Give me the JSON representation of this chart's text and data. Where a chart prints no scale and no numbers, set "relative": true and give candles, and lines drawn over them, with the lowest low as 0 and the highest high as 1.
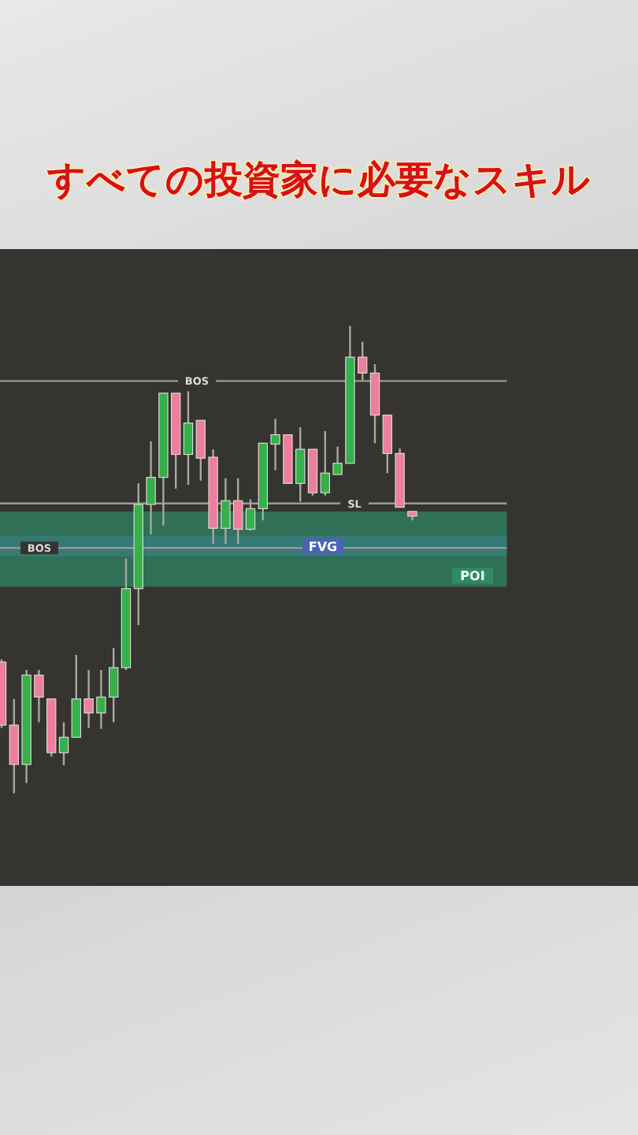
{
  "chart_data": {
    "type": "candlestick",
    "title": "すべての投資家に必要なスキル",
    "relative": true,
    "categories": [
      null,
      null,
      null,
      null,
      null,
      null,
      null,
      null,
      null,
      null,
      null,
      null,
      null,
      null,
      null,
      null,
      null,
      null,
      null,
      null,
      null,
      null,
      null,
      null,
      null,
      null,
      null,
      null,
      null,
      null,
      null,
      null,
      null,
      null
    ],
    "ohlc": [
      [
        0.281,
        0.287,
        0.14,
        0.146
      ],
      [
        0.146,
        0.202,
        0,
        0.062
      ],
      [
        0.062,
        0.264,
        0.022,
        0.253
      ],
      [
        0.253,
        0.264,
        0.152,
        0.206
      ],
      [
        0.202,
        0.202,
        0.079,
        0.087
      ],
      [
        0.087,
        0.152,
        0.06,
        0.12
      ],
      [
        0.12,
        0.296,
        0.12,
        0.202
      ],
      [
        0.202,
        0.264,
        0.14,
        0.172
      ],
      [
        0.172,
        0.264,
        0.138,
        0.206
      ],
      [
        0.206,
        0.311,
        0.152,
        0.269
      ],
      [
        0.269,
        0.502,
        0.264,
        0.438
      ],
      [
        0.438,
        0.663,
        0.36,
        0.618
      ],
      [
        0.618,
        0.753,
        0.554,
        0.676
      ],
      [
        0.676,
        0.856,
        0.573,
        0.856
      ],
      [
        0.856,
        0.856,
        0.652,
        0.725
      ],
      [
        0.725,
        0.86,
        0.66,
        0.792
      ],
      [
        0.798,
        0.798,
        0.669,
        0.717
      ],
      [
        0.719,
        0.736,
        0.534,
        0.567
      ],
      [
        0.567,
        0.674,
        0.534,
        0.626
      ],
      [
        0.626,
        0.674,
        0.534,
        0.565
      ],
      [
        0.565,
        0.629,
        0.562,
        0.609
      ],
      [
        0.609,
        0.749,
        0.584,
        0.749
      ],
      [
        0.747,
        0.801,
        0.691,
        0.767
      ],
      [
        0.767,
        0.767,
        0.663,
        0.663
      ],
      [
        0.663,
        0.783,
        0.624,
        0.736
      ],
      [
        0.736,
        0.736,
        0.637,
        0.643
      ],
      [
        0.643,
        0.775,
        0.637,
        0.685
      ],
      [
        0.682,
        0.742,
        0.682,
        0.706
      ],
      [
        0.706,
        1,
        0.706,
        0.933
      ],
      [
        0.933,
        0.966,
        0.882,
        0.899
      ],
      [
        0.899,
        0.918,
        0.749,
        0.809
      ],
      [
        0.809,
        0.809,
        0.685,
        0.727
      ],
      [
        0.727,
        0.738,
        0.612,
        0.612
      ],
      [
        0.603,
        0.603,
        0.584,
        0.593
      ]
    ],
    "colors": [
      "#ef7d9c",
      "#ef7d9c",
      "#35b04a",
      "#ef7d9c",
      "#ef7d9c",
      "#35b04a",
      "#35b04a",
      "#ef7d9c",
      "#35b04a",
      "#35b04a",
      "#35b04a",
      "#35b04a",
      "#35b04a",
      "#35b04a",
      "#ef7d9c",
      "#35b04a",
      "#ef7d9c",
      "#ef7d9c",
      "#35b04a",
      "#ef7d9c",
      "#35b04a",
      "#35b04a",
      "#35b04a",
      "#ef7d9c",
      "#35b04a",
      "#ef7d9c",
      "#35b04a",
      "#35b04a",
      "#35b04a",
      "#ef7d9c",
      "#ef7d9c",
      "#ef7d9c",
      "#ef7d9c",
      "#ef7d9c"
    ],
    "bands": [
      {
        "axis": "y",
        "from": 0.507,
        "to": 0.551,
        "label": "FVG",
        "color": "#4a63b8"
      },
      {
        "axis": "y",
        "from": 0.442,
        "to": 0.603,
        "label": "POI",
        "color": "#2f8a68"
      }
    ],
    "ref_lines": [
      {
        "axis": "y",
        "value": 0.525,
        "label": "BOS",
        "color": "#9a9a9a"
      },
      {
        "axis": "y",
        "value": 0.882,
        "label": "BOS",
        "color": "#9a9a9a"
      },
      {
        "axis": "y",
        "value": 0.62,
        "label": "SL",
        "color": "#9a9a9a"
      }
    ]
  }
}
